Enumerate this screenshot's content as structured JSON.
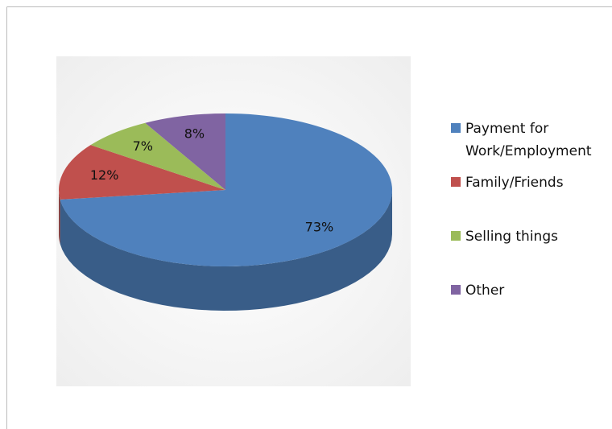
{
  "chart_data": {
    "type": "pie",
    "categories": [
      "Payment for Work/Employment",
      "Family/Friends",
      "Selling things",
      "Other"
    ],
    "values": [
      73,
      12,
      7,
      8
    ],
    "value_labels": [
      "73%",
      "12%",
      "7%",
      "8%"
    ],
    "colors": [
      "#4f81bd",
      "#c0504d",
      "#9bbb59",
      "#8064a2"
    ],
    "legend": "right"
  }
}
